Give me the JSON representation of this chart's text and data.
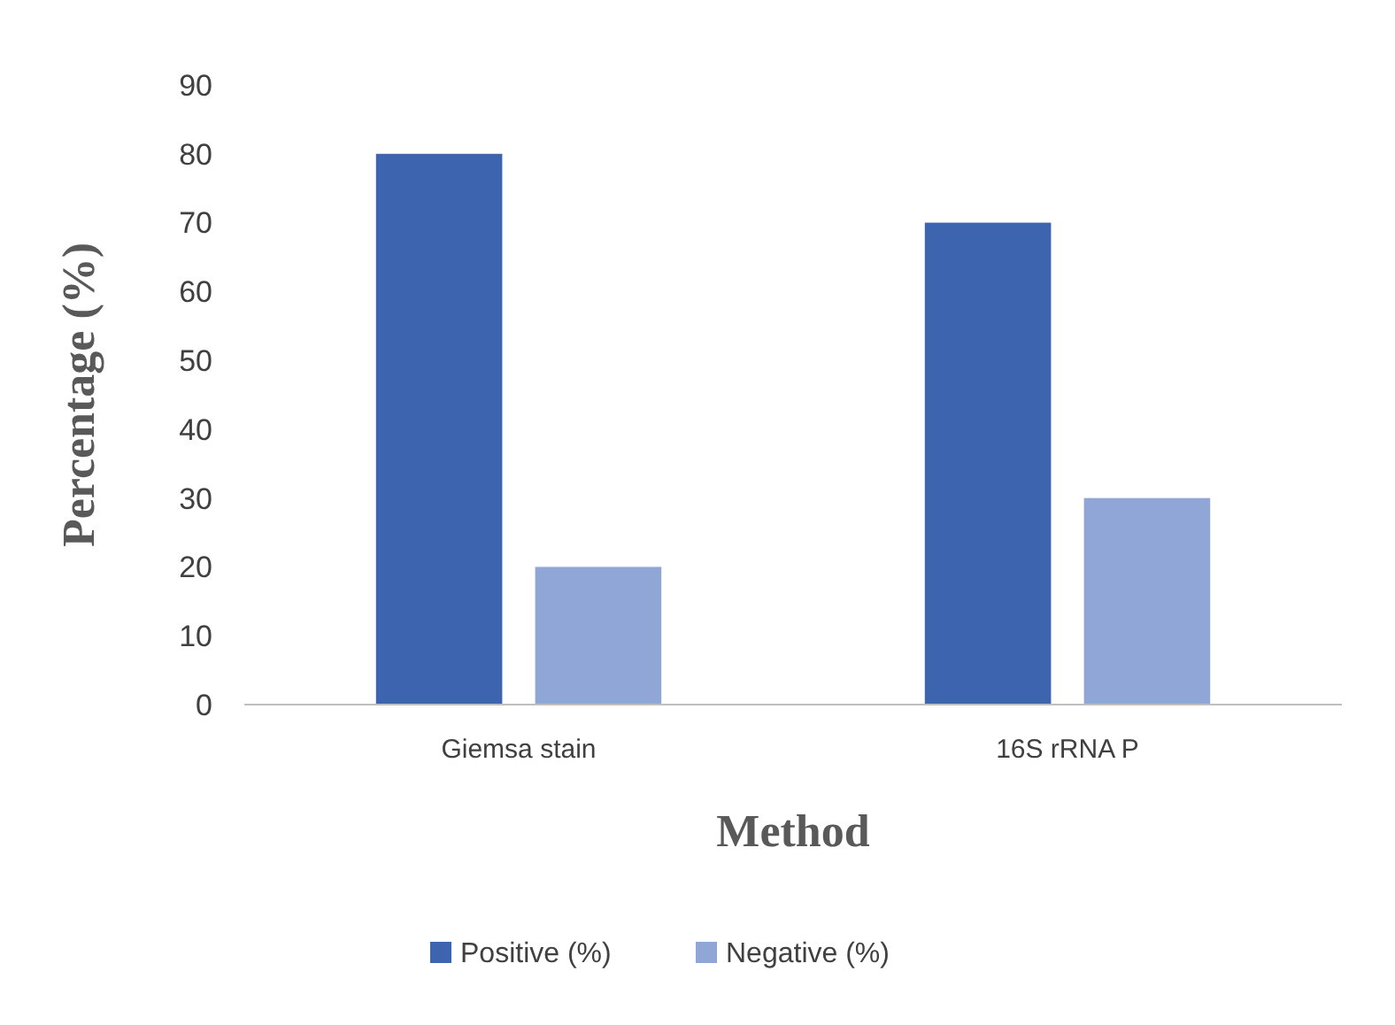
{
  "chart_data": {
    "type": "bar",
    "xlabel": "Method",
    "ylabel": "Percentage (%)",
    "categories": [
      "Giemsa stain",
      "16S rRNA P"
    ],
    "series": [
      {
        "name": "Positive (%)",
        "color": "#3d64ae",
        "values": [
          80,
          70
        ]
      },
      {
        "name": "Negative (%)",
        "color": "#8fa6d7",
        "values": [
          20,
          30
        ]
      }
    ],
    "ylim": [
      0,
      90
    ],
    "yticks": [
      0,
      10,
      20,
      30,
      40,
      50,
      60,
      70,
      80,
      90
    ],
    "grid": false,
    "legend": "bottom"
  }
}
